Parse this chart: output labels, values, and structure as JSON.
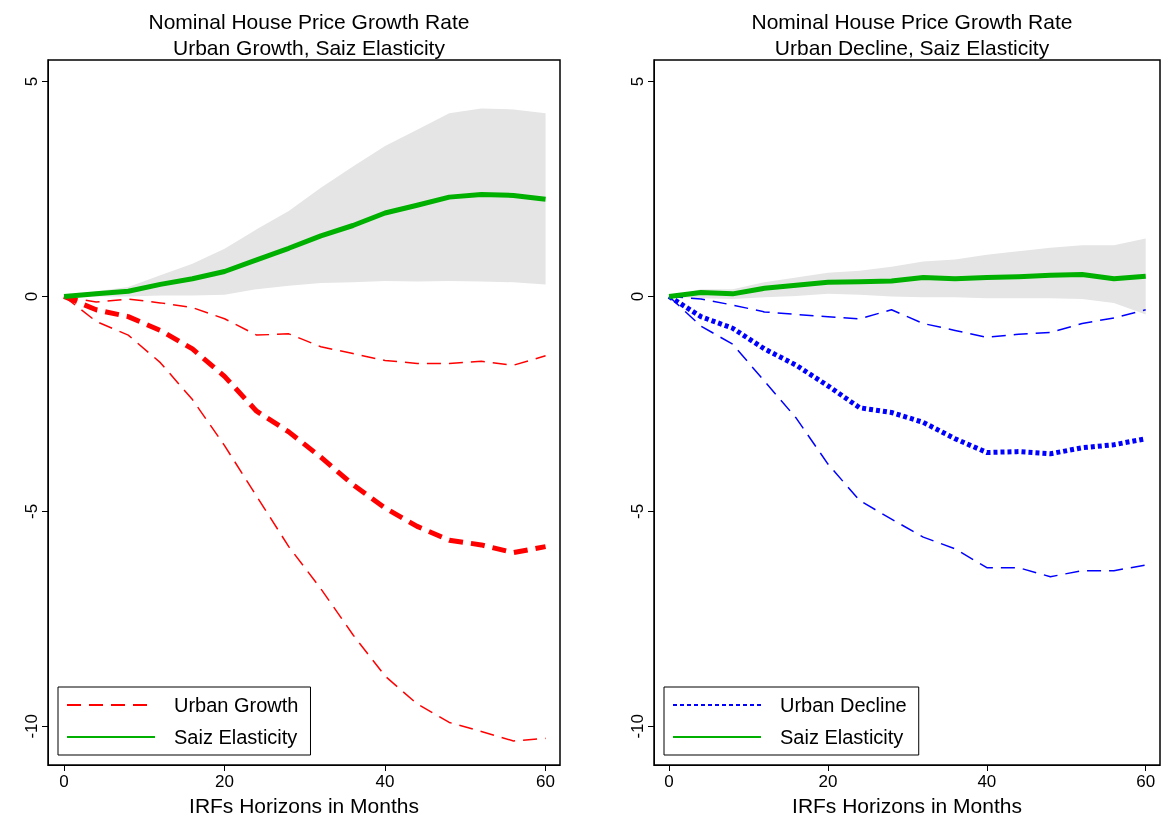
{
  "chart_data": [
    {
      "type": "line",
      "title": "Nominal House Price Growth Rate",
      "subtitle": "Urban Growth, Saiz Elasticity",
      "xlabel": "IRFs Horizons in Months",
      "x": [
        0,
        4,
        8,
        12,
        16,
        20,
        24,
        28,
        32,
        36,
        40,
        44,
        48,
        52,
        56,
        60
      ],
      "xlim": [
        -2,
        61.8
      ],
      "ylim": [
        -10.9,
        5.5
      ],
      "xticks": [
        0,
        20,
        40,
        60
      ],
      "yticks": [
        -10,
        -5,
        0,
        5
      ],
      "grid": false,
      "legend": "bottom left",
      "marker": "none",
      "series": [
        {
          "name": "Urban Growth",
          "color": "#ff0000",
          "line_style": "dashed",
          "values": [
            0,
            -0.31,
            -0.47,
            -0.79,
            -1.22,
            -1.86,
            -2.67,
            -3.15,
            -3.74,
            -4.38,
            -4.92,
            -5.35,
            -5.67,
            -5.78,
            -5.96,
            -5.82
          ]
        },
        {
          "color": "#ff0000",
          "line_style": "dashed",
          "values": [
            0,
            -0.13,
            -0.06,
            -0.15,
            -0.26,
            -0.52,
            -0.9,
            -0.87,
            -1.17,
            -1.33,
            -1.49,
            -1.56,
            -1.56,
            -1.51,
            -1.6,
            -1.38
          ]
        },
        {
          "color": "#ff0000",
          "line_style": "dashed",
          "values": [
            0,
            -0.58,
            -0.9,
            -1.54,
            -2.4,
            -3.47,
            -4.65,
            -5.82,
            -6.8,
            -7.87,
            -8.83,
            -9.48,
            -9.91,
            -10.12,
            -10.34,
            -10.28
          ]
        },
        {
          "name": "Saiz Elasticity",
          "color": "#00b000",
          "line_style": "solid",
          "values": [
            0,
            0.06,
            0.12,
            0.28,
            0.41,
            0.58,
            0.85,
            1.12,
            1.41,
            1.65,
            1.94,
            2.12,
            2.31,
            2.37,
            2.35,
            2.26
          ],
          "lower": [
            0,
            0,
            0,
            0.02,
            0.02,
            0.04,
            0.17,
            0.25,
            0.31,
            0.33,
            0.36,
            0.35,
            0.36,
            0.35,
            0.33,
            0.28
          ],
          "upper": [
            0,
            0.12,
            0.22,
            0.49,
            0.76,
            1.11,
            1.56,
            1.99,
            2.53,
            3.02,
            3.5,
            3.88,
            4.26,
            4.37,
            4.35,
            4.26
          ]
        }
      ]
    },
    {
      "type": "line",
      "title": "Nominal House Price Growth Rate",
      "subtitle": "Urban Decline, Saiz Elasticity",
      "xlabel": "IRFs Horizons in Months",
      "x": [
        0,
        4,
        8,
        12,
        16,
        20,
        24,
        28,
        32,
        36,
        40,
        44,
        48,
        52,
        56,
        60
      ],
      "xlim": [
        -1.9,
        61.8
      ],
      "ylim": [
        -10.9,
        5.5
      ],
      "xticks": [
        0,
        20,
        40,
        60
      ],
      "yticks": [
        -10,
        -5,
        0,
        5
      ],
      "grid": false,
      "legend": "bottom left",
      "marker": "none",
      "series": [
        {
          "name": "Urban Decline",
          "color": "#0000ff",
          "line_style": "dotted",
          "values": [
            0,
            -0.47,
            -0.74,
            -1.22,
            -1.6,
            -2.08,
            -2.59,
            -2.7,
            -2.93,
            -3.31,
            -3.63,
            -3.61,
            -3.66,
            -3.52,
            -3.45,
            -3.31
          ]
        },
        {
          "color": "#0000ff",
          "line_style": "dashed",
          "values": [
            0,
            -0.06,
            -0.2,
            -0.36,
            -0.42,
            -0.47,
            -0.52,
            -0.31,
            -0.63,
            -0.79,
            -0.95,
            -0.88,
            -0.84,
            -0.63,
            -0.5,
            -0.31
          ]
        },
        {
          "color": "#0000ff",
          "line_style": "dashed",
          "values": [
            0,
            -0.69,
            -1.11,
            -1.97,
            -2.83,
            -3.9,
            -4.75,
            -5.18,
            -5.6,
            -5.87,
            -6.31,
            -6.31,
            -6.52,
            -6.38,
            -6.38,
            -6.25
          ]
        },
        {
          "name": "Saiz Elasticity",
          "color": "#00b000",
          "line_style": "solid",
          "values": [
            0,
            0.09,
            0.06,
            0.19,
            0.26,
            0.33,
            0.34,
            0.36,
            0.44,
            0.41,
            0.44,
            0.46,
            0.49,
            0.51,
            0.41,
            0.47
          ],
          "lower": [
            0,
            -0.04,
            -0.06,
            -0.02,
            0.01,
            0.06,
            0.04,
            0,
            -0.02,
            -0.02,
            -0.04,
            -0.04,
            -0.04,
            -0.06,
            -0.15,
            -0.42
          ],
          "upper": [
            0,
            0.17,
            0.17,
            0.33,
            0.44,
            0.55,
            0.6,
            0.69,
            0.81,
            0.86,
            0.97,
            1.05,
            1.13,
            1.19,
            1.19,
            1.35
          ]
        }
      ]
    }
  ]
}
